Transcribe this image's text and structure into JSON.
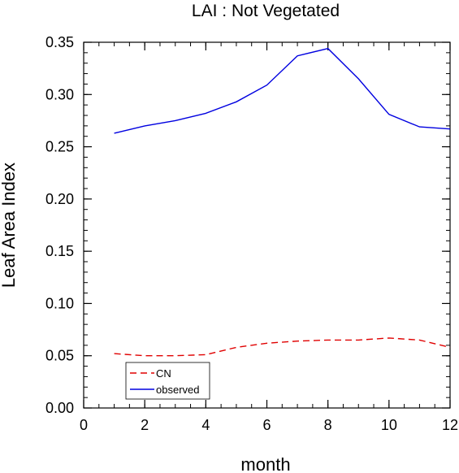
{
  "chart_data": {
    "type": "line",
    "title": "LAI : Not Vegetated",
    "xlabel": "month",
    "ylabel": "Leaf Area Index",
    "xlim": [
      0,
      12
    ],
    "ylim": [
      0.0,
      0.35
    ],
    "xticks": [
      0,
      2,
      4,
      6,
      8,
      10,
      12
    ],
    "xtick_labels": [
      "0",
      "2",
      "4",
      "6",
      "8",
      "10",
      "12"
    ],
    "yticks": [
      0.0,
      0.05,
      0.1,
      0.15,
      0.2,
      0.25,
      0.3,
      0.35
    ],
    "ytick_labels": [
      "0.00",
      "0.05",
      "0.10",
      "0.15",
      "0.20",
      "0.25",
      "0.30",
      "0.35"
    ],
    "grid": false,
    "legend_position": "bottom-left",
    "x": [
      1,
      2,
      3,
      4,
      5,
      6,
      7,
      8,
      9,
      10,
      11,
      12
    ],
    "series": [
      {
        "name": "CN",
        "color": "#e00000",
        "dash": "dashed",
        "values": [
          0.052,
          0.05,
          0.05,
          0.051,
          0.058,
          0.062,
          0.064,
          0.065,
          0.065,
          0.067,
          0.065,
          0.058
        ]
      },
      {
        "name": "observed",
        "color": "#0000e0",
        "dash": "solid",
        "values": [
          0.263,
          0.27,
          0.275,
          0.282,
          0.293,
          0.309,
          0.337,
          0.344,
          0.315,
          0.281,
          0.269,
          0.267
        ]
      }
    ]
  }
}
